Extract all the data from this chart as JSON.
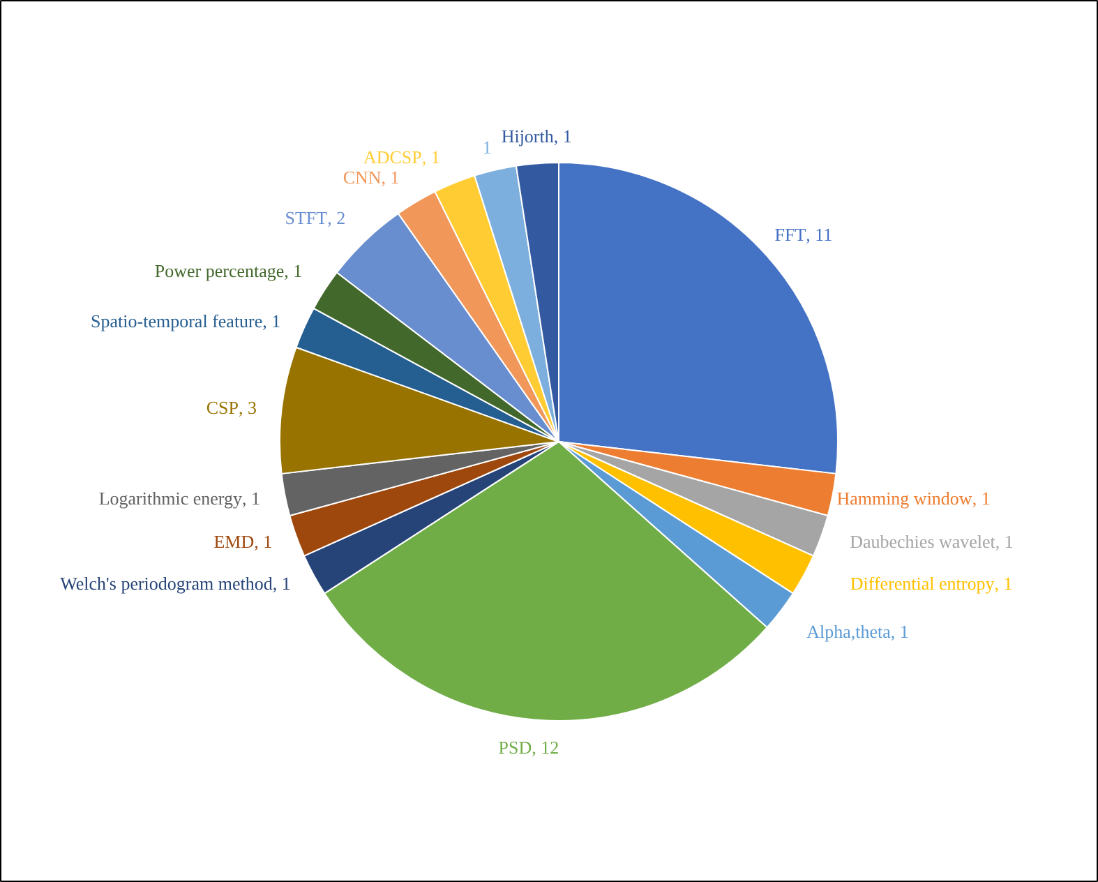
{
  "chart_data": {
    "type": "pie",
    "categories": [
      "FFT",
      "Hamming window",
      "Daubechies wavelet",
      "Differential entropy",
      "Alpha,theta",
      "PSD",
      "Welch's periodogram method",
      "EMD",
      "Logarithmic energy",
      "CSP",
      "Spatio-temporal feature",
      "Power percentage",
      "STFT",
      "CNN",
      "ADCSP",
      null,
      "Hijorth"
    ],
    "values": [
      11,
      1,
      1,
      1,
      1,
      12,
      1,
      1,
      1,
      3,
      1,
      1,
      2,
      1,
      1,
      1,
      1
    ],
    "colors": [
      "#4472c4",
      "#ed7d31",
      "#a5a5a5",
      "#ffc000",
      "#5b9bd5",
      "#70ad47",
      "#264478",
      "#9e480e",
      "#636363",
      "#997300",
      "#255e91",
      "#43682b",
      "#698ed0",
      "#f1975a",
      "#ffcd33",
      "#7cafdd",
      "#335aa1"
    ],
    "value_labels": [
      ", 11",
      ", 1",
      ", 1",
      ", 1",
      ", 1",
      ", 12",
      ", 1",
      ", 1",
      ", 1",
      ", 3",
      ", 1",
      ", 1",
      ", 2",
      ", 1",
      ", 1",
      "1",
      ", 1"
    ]
  }
}
